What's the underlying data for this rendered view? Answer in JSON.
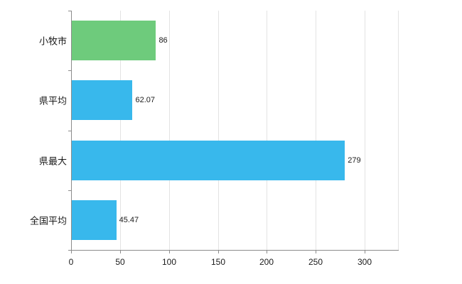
{
  "chart_data": {
    "type": "bar",
    "orientation": "horizontal",
    "title": "",
    "xlabel": "",
    "ylabel": "",
    "categories": [
      "小牧市",
      "県平均",
      "県最大",
      "全国平均"
    ],
    "values": [
      86,
      62.07,
      279,
      45.47
    ],
    "value_labels": [
      "86",
      "62.07",
      "279",
      "45.47"
    ],
    "bar_colors": [
      "#6ecb7c",
      "#38b8ec",
      "#38b8ec",
      "#38b8ec"
    ],
    "xlim": [
      0,
      334
    ],
    "xticks": [
      0,
      50,
      100,
      150,
      200,
      250,
      300
    ],
    "xtick_labels": [
      "0",
      "50",
      "100",
      "150",
      "200",
      "250",
      "300"
    ],
    "grid": true,
    "legend": false,
    "colors": {
      "grid": "#e3e3e3",
      "axis": "#8c8c8c",
      "text": "#1a1a1a",
      "background": "#ffffff"
    }
  }
}
